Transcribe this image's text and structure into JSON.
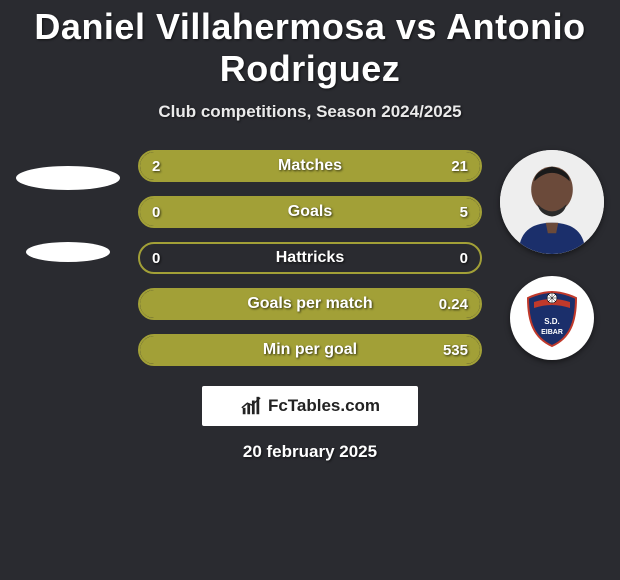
{
  "title": "Daniel Villahermosa vs Antonio Rodriguez",
  "subtitle": "Club competitions, Season 2024/2025",
  "date": "20 february 2025",
  "watermark_text": "FcTables.com",
  "colors": {
    "bar_border": "#a2a037",
    "bar_fill": "#a2a037",
    "background": "#2a2b30",
    "badge_primary": "#1b2f6b",
    "badge_accent": "#c0392b"
  },
  "bars": [
    {
      "label": "Matches",
      "left": "2",
      "right": "21",
      "left_pct": 9,
      "right_pct": 91,
      "fill_side": "both"
    },
    {
      "label": "Goals",
      "left": "0",
      "right": "5",
      "left_pct": 0,
      "right_pct": 100,
      "fill_side": "right"
    },
    {
      "label": "Hattricks",
      "left": "0",
      "right": "0",
      "left_pct": 0,
      "right_pct": 0,
      "fill_side": "none"
    },
    {
      "label": "Goals per match",
      "left": "",
      "right": "0.24",
      "left_pct": 0,
      "right_pct": 100,
      "fill_side": "full"
    },
    {
      "label": "Min per goal",
      "left": "",
      "right": "535",
      "left_pct": 0,
      "right_pct": 100,
      "fill_side": "full"
    }
  ]
}
